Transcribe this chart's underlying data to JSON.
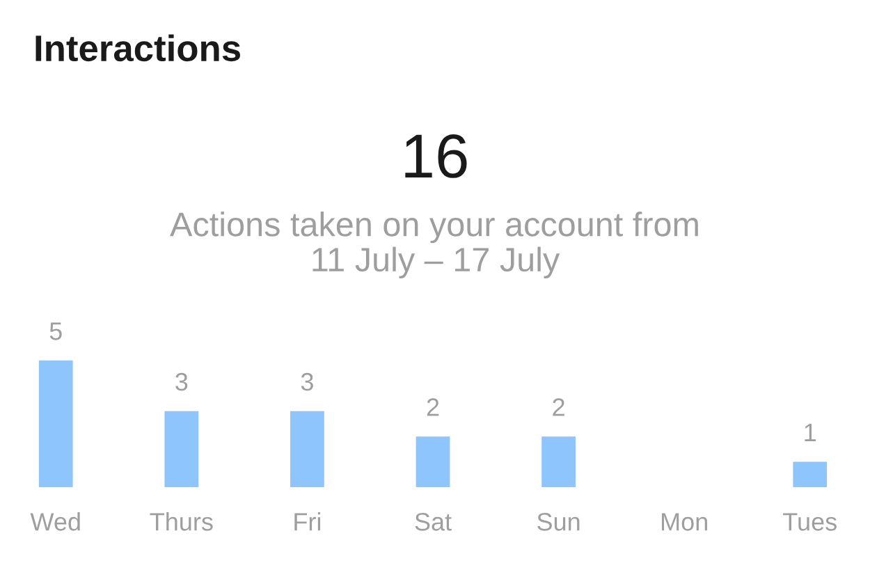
{
  "chart_data": {
    "type": "bar",
    "title": "Interactions",
    "annotations": [
      "16",
      "Actions taken on your account from\n11 July – 17 July"
    ],
    "categories": [
      "Wed",
      "Thurs",
      "Fri",
      "Sat",
      "Sun",
      "Mon",
      "Tues"
    ],
    "values": [
      5,
      3,
      3,
      2,
      2,
      null,
      1
    ],
    "color": "#8ec5fc",
    "value_labels": [
      "5",
      "3",
      "3",
      "2",
      "2",
      null,
      "1"
    ],
    "tick_labels": "x"
  }
}
